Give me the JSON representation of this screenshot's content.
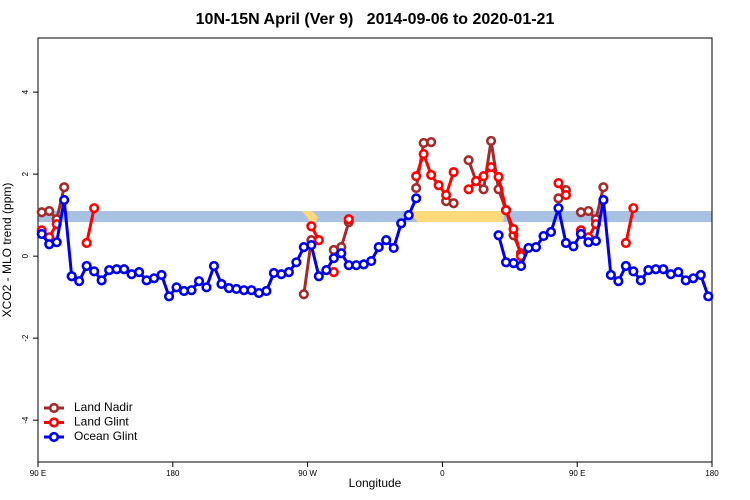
{
  "chart_data": {
    "type": "line",
    "title": "10N-15N April (Ver 9)   2014-09-06 to 2020-01-21",
    "xlabel": "Longitude",
    "ylabel": "XCO2 - MLO trend (ppm)",
    "xlim": [
      90,
      540
    ],
    "ylim": [
      -5.02,
      5.32
    ],
    "xticks": [
      {
        "value": 90,
        "label": "90 E"
      },
      180,
      {
        "value": 270,
        "label": "90 W"
      },
      {
        "value": 360,
        "label": "0"
      },
      {
        "value": 450,
        "label": "90 E"
      },
      {
        "value": 540,
        "label": "180"
      }
    ],
    "yticks": [
      -4,
      -2,
      0,
      2,
      4
    ],
    "band": {
      "ylim": [
        0.83,
        1.1
      ],
      "color": "#a8c1e3"
    },
    "legend": "bottom-left",
    "x": [
      92.5,
      97.5,
      102.5,
      107.5,
      112.5,
      117.5,
      122.5,
      127.5,
      132.5,
      137.5,
      142.5,
      147.5,
      152.5,
      157.5,
      162.5,
      167.5,
      172.5,
      177.5,
      182.5,
      187.5,
      192.5,
      197.5,
      202.5,
      207.5,
      212.5,
      217.5,
      222.5,
      227.5,
      232.5,
      237.5,
      242.5,
      247.5,
      252.5,
      257.5,
      262.5,
      267.5,
      272.5,
      277.5,
      282.5,
      287.5,
      292.5,
      297.5,
      302.5,
      307.5,
      312.5,
      317.5,
      322.5,
      327.5,
      332.5,
      337.5,
      342.5,
      347.5,
      352.5,
      357.5,
      362.5,
      367.5,
      372.5,
      377.5,
      382.5,
      387.5,
      392.5,
      397.5,
      402.5,
      407.5,
      412.5,
      417.5,
      422.5,
      427.5,
      432.5,
      437.5,
      442.5,
      447.5,
      452.5,
      457.5,
      462.5,
      467.5,
      472.5,
      477.5,
      482.5,
      487.5,
      492.5,
      497.5,
      502.5,
      507.5,
      512.5,
      517.5,
      522.5,
      527.5,
      532.5,
      537.5
    ],
    "series": [
      {
        "name": "Land Nadir",
        "color": "#a52a2a",
        "values": [
          1.07,
          1.1,
          0.9,
          1.68,
          null,
          null,
          null,
          null,
          null,
          null,
          null,
          null,
          null,
          null,
          null,
          null,
          null,
          null,
          null,
          null,
          null,
          null,
          null,
          null,
          null,
          null,
          null,
          null,
          null,
          null,
          null,
          null,
          null,
          null,
          null,
          -0.93,
          0.39,
          null,
          null,
          0.15,
          0.22,
          0.83,
          null,
          null,
          null,
          null,
          null,
          null,
          null,
          null,
          1.66,
          2.76,
          2.78,
          null,
          1.34,
          1.29,
          null,
          2.34,
          1.83,
          1.63,
          2.81,
          1.63,
          1.12,
          0.51,
          0.07,
          null,
          null,
          null,
          null,
          1.41,
          1.61,
          null,
          1.07,
          1.1,
          0.9,
          1.68,
          null,
          null,
          null,
          null,
          null,
          null,
          null,
          null,
          null,
          null,
          null,
          null,
          null,
          null
        ]
      },
      {
        "name": "Land Glint",
        "color": "#ff0000",
        "values": [
          0.63,
          0.46,
          0.78,
          null,
          null,
          null,
          0.32,
          1.17,
          null,
          null,
          null,
          null,
          null,
          null,
          null,
          null,
          null,
          null,
          null,
          null,
          null,
          null,
          null,
          null,
          null,
          null,
          null,
          null,
          null,
          null,
          null,
          null,
          null,
          null,
          null,
          null,
          0.73,
          0.39,
          null,
          -0.39,
          null,
          0.9,
          null,
          null,
          null,
          null,
          null,
          null,
          null,
          null,
          1.95,
          2.49,
          1.98,
          1.73,
          1.49,
          2.05,
          null,
          1.63,
          1.83,
          1.95,
          2.17,
          1.93,
          1.12,
          0.66,
          0.0,
          null,
          null,
          null,
          null,
          1.78,
          1.49,
          null,
          0.63,
          0.46,
          0.78,
          null,
          null,
          null,
          0.32,
          1.17,
          null,
          null,
          null,
          null,
          null,
          null,
          null,
          null,
          null,
          null
        ]
      },
      {
        "name": "Ocean Glint",
        "color": "#0000ee",
        "values": [
          0.54,
          0.29,
          0.34,
          1.37,
          -0.49,
          -0.61,
          -0.24,
          -0.37,
          -0.59,
          -0.34,
          -0.32,
          -0.32,
          -0.44,
          -0.39,
          -0.59,
          -0.54,
          -0.46,
          -0.98,
          -0.76,
          -0.85,
          -0.83,
          -0.61,
          -0.76,
          -0.24,
          -0.68,
          -0.78,
          -0.8,
          -0.83,
          -0.83,
          -0.9,
          -0.85,
          -0.41,
          -0.44,
          -0.39,
          -0.15,
          0.22,
          0.27,
          -0.49,
          -0.34,
          -0.05,
          0.07,
          -0.22,
          -0.22,
          -0.2,
          -0.12,
          0.22,
          0.39,
          0.2,
          0.8,
          1.0,
          1.41,
          null,
          null,
          null,
          null,
          null,
          null,
          null,
          null,
          null,
          null,
          0.51,
          -0.15,
          -0.17,
          -0.24,
          0.2,
          0.22,
          0.49,
          0.59,
          1.17,
          0.32,
          0.24,
          0.54,
          0.34,
          0.37,
          1.37,
          -0.46,
          -0.61,
          -0.24,
          -0.37,
          -0.59,
          -0.34,
          -0.32,
          -0.32,
          -0.44,
          -0.39,
          -0.59,
          -0.54,
          -0.46,
          -0.98
        ]
      }
    ]
  }
}
